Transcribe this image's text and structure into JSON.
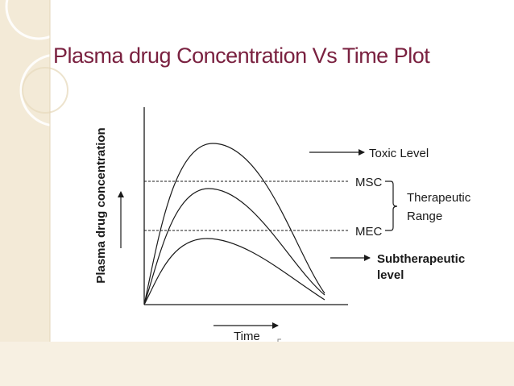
{
  "slide": {
    "title": "Plasma drug Concentration Vs Time Plot",
    "title_color": "#7a2140",
    "accent_color": "#f3ead7"
  },
  "figure": {
    "y_axis_label": "Plasma drug concentration",
    "x_axis_label": "Time",
    "threshold_lines": [
      {
        "label": "MSC"
      },
      {
        "label": "MEC"
      }
    ],
    "bracket_label_line1": "Therapeutic",
    "bracket_label_line2": "Range",
    "curve_annotations": [
      {
        "label": "Toxic Level",
        "bold": false
      },
      {
        "label_line1": "Subtherapeutic",
        "label_line2": "level",
        "bold": true
      }
    ],
    "curves": [
      {
        "level": "toxic",
        "peak_rank": 1
      },
      {
        "level": "therapeutic",
        "peak_rank": 2
      },
      {
        "level": "subtherapeutic",
        "peak_rank": 3
      }
    ]
  }
}
